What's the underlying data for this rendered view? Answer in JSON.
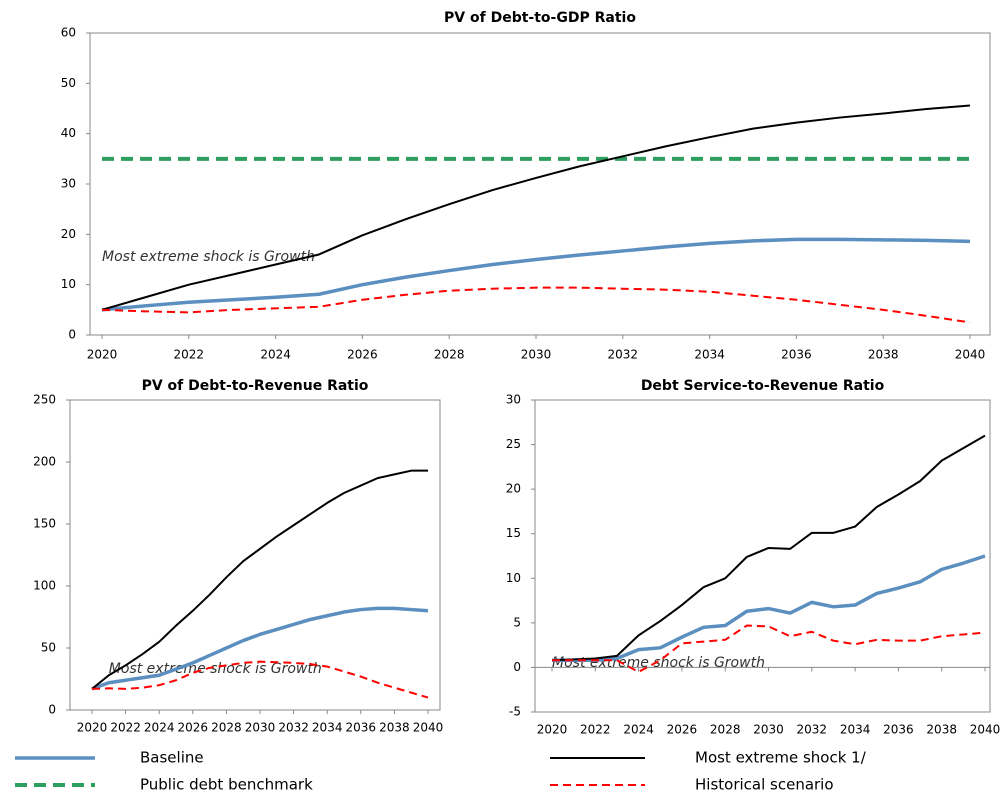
{
  "chart_data": [
    {
      "type": "line",
      "title": "PV of Debt-to-GDP Ratio",
      "annotation": "Most extreme shock is Growth",
      "annotation_at": [
        2020,
        15.5
      ],
      "x": [
        2020,
        2021,
        2022,
        2023,
        2024,
        2025,
        2026,
        2027,
        2028,
        2029,
        2030,
        2031,
        2032,
        2033,
        2034,
        2035,
        2036,
        2037,
        2038,
        2039,
        2040
      ],
      "xticks": [
        2020,
        2022,
        2024,
        2026,
        2028,
        2030,
        2032,
        2034,
        2036,
        2038,
        2040
      ],
      "ylim": [
        0,
        60
      ],
      "yticks": [
        0,
        10,
        20,
        30,
        40,
        50,
        60
      ],
      "grid": false,
      "series": [
        {
          "name": "Baseline",
          "color": "#5b8fc0",
          "style": "solid",
          "width": 3.5,
          "values": [
            5,
            5.8,
            6.5,
            7,
            7.5,
            8.1,
            10,
            11.5,
            12.8,
            14,
            15,
            15.9,
            16.7,
            17.5,
            18.2,
            18.7,
            19,
            19,
            18.9,
            18.8,
            18.6
          ]
        },
        {
          "name": "Public debt benchmark",
          "color": "#2e9e5e",
          "style": "dashed",
          "width": 4,
          "values": [
            35,
            35,
            35,
            35,
            35,
            35,
            35,
            35,
            35,
            35,
            35,
            35,
            35,
            35,
            35,
            35,
            35,
            35,
            35,
            35,
            35
          ]
        },
        {
          "name": "Most extreme shock 1/",
          "color": "#000000",
          "style": "solid",
          "width": 2,
          "values": [
            5,
            7.5,
            10,
            12,
            14,
            16,
            19.8,
            23,
            26,
            28.8,
            31.2,
            33.5,
            35.5,
            37.5,
            39.3,
            41,
            42.2,
            43.2,
            44,
            44.9,
            45.6
          ]
        },
        {
          "name": "Historical scenario",
          "color": "#ff0000",
          "style": "dashed",
          "width": 2,
          "values": [
            5,
            4.7,
            4.5,
            5,
            5.3,
            5.6,
            7,
            8,
            8.8,
            9.2,
            9.4,
            9.4,
            9.2,
            9,
            8.6,
            7.8,
            7,
            6,
            5,
            3.8,
            2.5
          ]
        }
      ]
    },
    {
      "type": "line",
      "title": "PV of Debt-to-Revenue Ratio",
      "annotation": "Most extreme shock is Growth",
      "annotation_at": [
        2021,
        33
      ],
      "x": [
        2020,
        2021,
        2022,
        2023,
        2024,
        2025,
        2026,
        2027,
        2028,
        2029,
        2030,
        2031,
        2032,
        2033,
        2034,
        2035,
        2036,
        2037,
        2038,
        2039,
        2040
      ],
      "xticks": [
        2020,
        2022,
        2024,
        2026,
        2028,
        2030,
        2032,
        2034,
        2036,
        2038,
        2040
      ],
      "ylim": [
        0,
        250
      ],
      "yticks": [
        0,
        50,
        100,
        150,
        200,
        250
      ],
      "grid": false,
      "series": [
        {
          "color": "#5b8fc0",
          "style": "solid",
          "width": 3.5,
          "values": [
            17,
            22,
            24,
            26,
            28,
            33,
            38,
            44,
            50,
            56,
            61,
            65,
            69,
            73,
            76,
            79,
            81,
            82,
            82,
            81,
            80
          ]
        },
        {
          "color": "#000000",
          "style": "solid",
          "width": 2,
          "values": [
            17,
            28,
            36,
            45,
            55,
            68,
            80,
            93,
            107,
            120,
            130,
            140,
            149,
            158,
            167,
            175,
            181,
            187,
            190,
            193,
            193
          ]
        },
        {
          "color": "#ff0000",
          "style": "dashed",
          "width": 2,
          "values": [
            17,
            17.5,
            17,
            18,
            20,
            24,
            30,
            34,
            36,
            38,
            39,
            38.5,
            38,
            37,
            35,
            31,
            27,
            22,
            18,
            14,
            10
          ]
        }
      ]
    },
    {
      "type": "line",
      "title": "Debt Service-to-Revenue Ratio",
      "annotation": "Most extreme shock is Growth",
      "annotation_at": [
        2020,
        0.5
      ],
      "x": [
        2020,
        2021,
        2022,
        2023,
        2024,
        2025,
        2026,
        2027,
        2028,
        2029,
        2030,
        2031,
        2032,
        2033,
        2034,
        2035,
        2036,
        2037,
        2038,
        2039,
        2040
      ],
      "xticks": [
        2020,
        2022,
        2024,
        2026,
        2028,
        2030,
        2032,
        2034,
        2036,
        2038,
        2040
      ],
      "ylim": [
        -5,
        30
      ],
      "yticks": [
        -5,
        0,
        5,
        10,
        15,
        20,
        25,
        30
      ],
      "grid": false,
      "series": [
        {
          "color": "#5b8fc0",
          "style": "solid",
          "width": 3.5,
          "values": [
            0.8,
            0.8,
            0.8,
            1.0,
            2.0,
            2.2,
            3.4,
            4.5,
            4.7,
            6.3,
            6.6,
            6.1,
            7.3,
            6.8,
            7.0,
            8.3,
            8.9,
            9.6,
            11,
            11.7,
            12.5
          ]
        },
        {
          "color": "#000000",
          "style": "solid",
          "width": 2,
          "values": [
            0.8,
            0.9,
            1.0,
            1.3,
            3.6,
            5.2,
            7,
            9,
            10,
            12.4,
            13.4,
            13.3,
            15.1,
            15.1,
            15.8,
            18,
            19.4,
            20.9,
            23.2,
            24.6,
            26
          ]
        },
        {
          "color": "#ff0000",
          "style": "dashed",
          "width": 2,
          "values": [
            0.8,
            0.8,
            0.8,
            0.8,
            -0.5,
            0.8,
            2.7,
            2.9,
            3.1,
            4.7,
            4.6,
            3.5,
            4.0,
            3.0,
            2.6,
            3.1,
            3.0,
            3.0,
            3.5,
            3.7,
            3.9
          ]
        }
      ]
    }
  ]
}
